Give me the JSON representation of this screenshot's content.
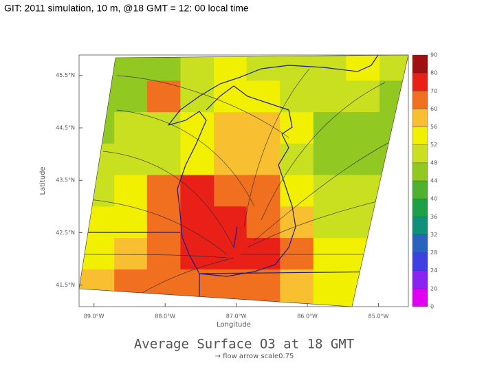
{
  "header": {
    "title": "GIT: 2011 simulation, 10 m, @18 GMT = 12: 00 local time"
  },
  "chart_data": {
    "type": "heatmap",
    "title": "Average Surface O3 at 18 GMT",
    "subtitle": "→ flow arrow scale0.75",
    "x_label": "Longitude",
    "y_label": "Latitude",
    "xlim": [
      -89.21,
      -84.58
    ],
    "ylim": [
      41.09,
      45.89
    ],
    "xticks": [
      {
        "value": -89,
        "label": "89.0°W"
      },
      {
        "value": -88,
        "label": "88.0°W"
      },
      {
        "value": -87,
        "label": "87.0°W"
      },
      {
        "value": -86,
        "label": "86.0°W"
      },
      {
        "value": -85,
        "label": "85.0°W"
      }
    ],
    "yticks": [
      {
        "value": 45.5,
        "label": "45.5°N"
      },
      {
        "value": 44.5,
        "label": "44.5°N"
      },
      {
        "value": 43.5,
        "label": "43.5°N"
      },
      {
        "value": 42.5,
        "label": "42.5°N"
      },
      {
        "value": 41.5,
        "label": "41.5°N"
      }
    ],
    "x": [
      -88.95,
      -88.48,
      -88.02,
      -87.55,
      -87.08,
      -86.62,
      -86.15,
      -85.68,
      -85.22,
      -84.75
    ],
    "y": [
      45.7,
      45.1,
      44.5,
      43.9,
      43.3,
      42.7,
      42.1,
      41.5
    ],
    "values": [
      [
        44,
        44,
        46,
        50,
        52,
        50,
        48,
        50,
        52,
        48
      ],
      [
        44,
        46,
        60,
        50,
        54,
        52,
        50,
        48,
        50,
        46
      ],
      [
        46,
        48,
        50,
        52,
        56,
        58,
        52,
        46,
        44,
        44
      ],
      [
        48,
        48,
        50,
        54,
        58,
        56,
        50,
        46,
        44,
        44
      ],
      [
        50,
        52,
        66,
        70,
        66,
        62,
        52,
        48,
        48,
        48
      ],
      [
        52,
        54,
        68,
        72,
        74,
        66,
        56,
        50,
        50,
        50
      ],
      [
        54,
        56,
        62,
        70,
        78,
        72,
        60,
        54,
        52,
        52
      ],
      [
        58,
        64,
        66,
        62,
        60,
        60,
        56,
        54,
        52,
        52
      ]
    ],
    "levels": [
      0,
      20,
      24,
      28,
      32,
      36,
      40,
      44,
      48,
      52,
      56,
      60,
      70,
      80,
      90
    ],
    "colors": [
      "#e000f0",
      "#8a24f0",
      "#4040e0",
      "#2a62c0",
      "#10907a",
      "#1ea048",
      "#50b030",
      "#92c822",
      "#c8e020",
      "#f0f000",
      "#f8c030",
      "#f07020",
      "#e82018",
      "#a01010"
    ]
  }
}
